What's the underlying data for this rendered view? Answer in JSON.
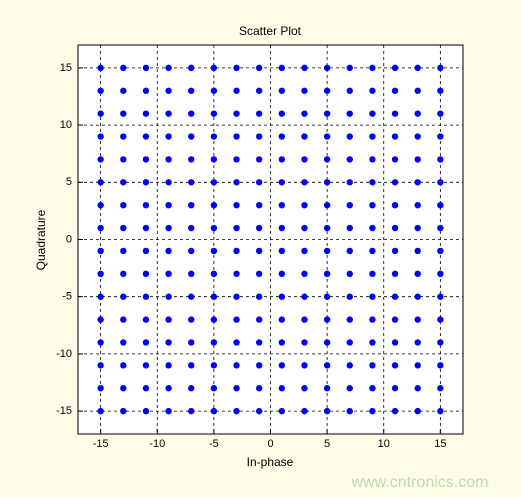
{
  "chart_data": {
    "type": "scatter",
    "title": "Scatter Plot",
    "xlabel": "In-phase",
    "ylabel": "Quadrature",
    "color": "#0000ff",
    "grid": true,
    "xlim": [
      -17,
      17
    ],
    "ylim": [
      -17,
      17
    ],
    "xticks": [
      -15,
      -10,
      -5,
      0,
      5,
      10,
      15
    ],
    "yticks": [
      -15,
      -10,
      -5,
      0,
      5,
      10,
      15
    ],
    "x": [
      -15,
      -13,
      -11,
      -9,
      -7,
      -5,
      -3,
      -1,
      1,
      3,
      5,
      7,
      9,
      11,
      13,
      15,
      -15,
      -13,
      -11,
      -9,
      -7,
      -5,
      -3,
      -1,
      1,
      3,
      5,
      7,
      9,
      11,
      13,
      15,
      -15,
      -13,
      -11,
      -9,
      -7,
      -5,
      -3,
      -1,
      1,
      3,
      5,
      7,
      9,
      11,
      13,
      15,
      -15,
      -13,
      -11,
      -9,
      -7,
      -5,
      -3,
      -1,
      1,
      3,
      5,
      7,
      9,
      11,
      13,
      15,
      -15,
      -13,
      -11,
      -9,
      -7,
      -5,
      -3,
      -1,
      1,
      3,
      5,
      7,
      9,
      11,
      13,
      15,
      -15,
      -13,
      -11,
      -9,
      -7,
      -5,
      -3,
      -1,
      1,
      3,
      5,
      7,
      9,
      11,
      13,
      15,
      -15,
      -13,
      -11,
      -9,
      -7,
      -5,
      -3,
      -1,
      1,
      3,
      5,
      7,
      9,
      11,
      13,
      15,
      -15,
      -13,
      -11,
      -9,
      -7,
      -5,
      -3,
      -1,
      1,
      3,
      5,
      7,
      9,
      11,
      13,
      15,
      -15,
      -13,
      -11,
      -9,
      -7,
      -5,
      -3,
      -1,
      1,
      3,
      5,
      7,
      9,
      11,
      13,
      15,
      -15,
      -13,
      -11,
      -9,
      -7,
      -5,
      -3,
      -1,
      1,
      3,
      5,
      7,
      9,
      11,
      13,
      15,
      -15,
      -13,
      -11,
      -9,
      -7,
      -5,
      -3,
      -1,
      1,
      3,
      5,
      7,
      9,
      11,
      13,
      15,
      -15,
      -13,
      -11,
      -9,
      -7,
      -5,
      -3,
      -1,
      1,
      3,
      5,
      7,
      9,
      11,
      13,
      15,
      -15,
      -13,
      -11,
      -9,
      -7,
      -5,
      -3,
      -1,
      1,
      3,
      5,
      7,
      9,
      11,
      13,
      15,
      -15,
      -13,
      -11,
      -9,
      -7,
      -5,
      -3,
      -1,
      1,
      3,
      5,
      7,
      9,
      11,
      13,
      15,
      -15,
      -13,
      -11,
      -9,
      -7,
      -5,
      -3,
      -1,
      1,
      3,
      5,
      7,
      9,
      11,
      13,
      15,
      -15,
      -13,
      -11,
      -9,
      -7,
      -5,
      -3,
      -1,
      1,
      3,
      5,
      7,
      9,
      11,
      13,
      15
    ],
    "y": [
      15,
      15,
      15,
      15,
      15,
      15,
      15,
      15,
      15,
      15,
      15,
      15,
      15,
      15,
      15,
      15,
      13,
      13,
      13,
      13,
      13,
      13,
      13,
      13,
      13,
      13,
      13,
      13,
      13,
      13,
      13,
      13,
      11,
      11,
      11,
      11,
      11,
      11,
      11,
      11,
      11,
      11,
      11,
      11,
      11,
      11,
      11,
      11,
      9,
      9,
      9,
      9,
      9,
      9,
      9,
      9,
      9,
      9,
      9,
      9,
      9,
      9,
      9,
      9,
      7,
      7,
      7,
      7,
      7,
      7,
      7,
      7,
      7,
      7,
      7,
      7,
      7,
      7,
      7,
      7,
      5,
      5,
      5,
      5,
      5,
      5,
      5,
      5,
      5,
      5,
      5,
      5,
      5,
      5,
      5,
      5,
      3,
      3,
      3,
      3,
      3,
      3,
      3,
      3,
      3,
      3,
      3,
      3,
      3,
      3,
      3,
      3,
      1,
      1,
      1,
      1,
      1,
      1,
      1,
      1,
      1,
      1,
      1,
      1,
      1,
      1,
      1,
      1,
      -1,
      -1,
      -1,
      -1,
      -1,
      -1,
      -1,
      -1,
      -1,
      -1,
      -1,
      -1,
      -1,
      -1,
      -1,
      -1,
      -3,
      -3,
      -3,
      -3,
      -3,
      -3,
      -3,
      -3,
      -3,
      -3,
      -3,
      -3,
      -3,
      -3,
      -3,
      -3,
      -5,
      -5,
      -5,
      -5,
      -5,
      -5,
      -5,
      -5,
      -5,
      -5,
      -5,
      -5,
      -5,
      -5,
      -5,
      -5,
      -7,
      -7,
      -7,
      -7,
      -7,
      -7,
      -7,
      -7,
      -7,
      -7,
      -7,
      -7,
      -7,
      -7,
      -7,
      -7,
      -9,
      -9,
      -9,
      -9,
      -9,
      -9,
      -9,
      -9,
      -9,
      -9,
      -9,
      -9,
      -9,
      -9,
      -9,
      -9,
      -11,
      -11,
      -11,
      -11,
      -11,
      -11,
      -11,
      -11,
      -11,
      -11,
      -11,
      -11,
      -11,
      -11,
      -11,
      -11,
      -13,
      -13,
      -13,
      -13,
      -13,
      -13,
      -13,
      -13,
      -13,
      -13,
      -13,
      -13,
      -13,
      -13,
      -13,
      -13,
      -15,
      -15,
      -15,
      -15,
      -15,
      -15,
      -15,
      -15,
      -15,
      -15,
      -15,
      -15,
      -15,
      -15,
      -15,
      -15
    ],
    "watermark": "www.cntronics.com"
  }
}
